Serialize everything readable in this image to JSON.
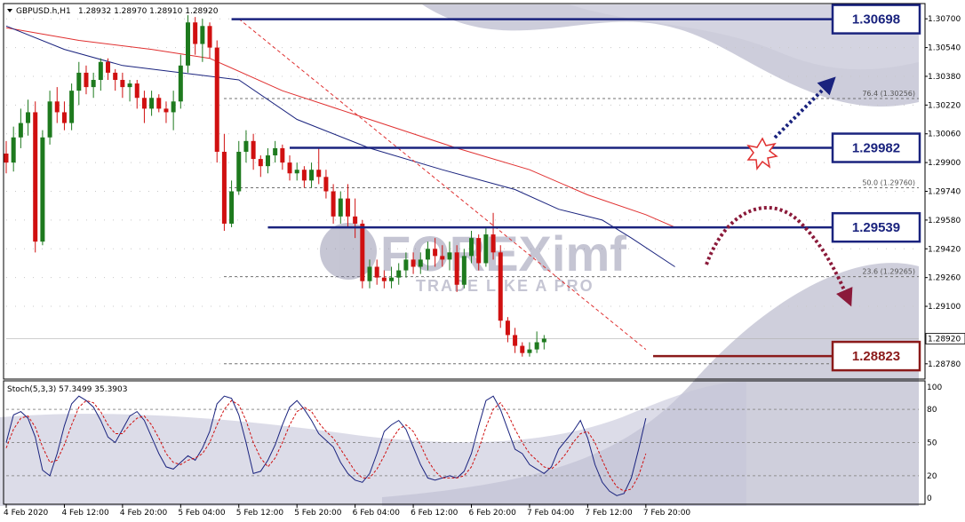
{
  "header": {
    "symbol": "GBPUSD.h,H1",
    "ohlc": "1.28932 1.28970 1.28910 1.28920"
  },
  "oscillator": {
    "label": "Stoch(5,3,3) 57.3499 35.3903"
  },
  "watermark": {
    "brand": "FOREXimf",
    "tagline": "TRADE LIKE A PRO"
  },
  "colors": {
    "level_box": "#1a237e",
    "support_box": "#8b1a1a",
    "red_ma": "#e03030",
    "blue_ma": "#1a237e",
    "bull_candle": "#1e7a1e",
    "bear_candle": "#d01010",
    "arrow_up": "#1a237e",
    "arrow_down": "#8b1a3a",
    "stoch_main": "#1a237e",
    "stoch_signal": "#d01010"
  },
  "chart_data": [
    {
      "type": "candlestick",
      "title": "GBPUSD.h,H1",
      "ylim": [
        1.287,
        1.3078
      ],
      "y_ticks": [
        "1.30700",
        "1.30540",
        "1.30380",
        "1.30220",
        "1.30060",
        "1.29900",
        "1.29740",
        "1.29580",
        "1.29420",
        "1.29260",
        "1.29100",
        "1.28780"
      ],
      "y_tick_values": [
        1.307,
        1.3054,
        1.3038,
        1.3022,
        1.3006,
        1.299,
        1.2974,
        1.2958,
        1.2942,
        1.2926,
        1.291,
        1.2878
      ],
      "current_price": "1.28920",
      "x_labels": [
        "4 Feb 2020",
        "4 Feb 12:00",
        "4 Feb 20:00",
        "5 Feb 04:00",
        "5 Feb 12:00",
        "5 Feb 20:00",
        "6 Feb 04:00",
        "6 Feb 12:00",
        "6 Feb 20:00",
        "7 Feb 04:00",
        "7 Feb 12:00",
        "7 Feb 20:00"
      ],
      "x_label_bars": [
        0,
        8,
        16,
        24,
        32,
        40,
        48,
        56,
        64,
        72,
        80,
        88
      ],
      "candles": [
        [
          1.2995,
          1.3002,
          1.2984,
          1.299
        ],
        [
          1.299,
          1.301,
          1.2985,
          1.3004
        ],
        [
          1.3004,
          1.302,
          1.2998,
          1.3012
        ],
        [
          1.3012,
          1.3025,
          1.3005,
          1.3018
        ],
        [
          1.3018,
          1.3024,
          1.294,
          1.2946
        ],
        [
          1.2946,
          1.3008,
          1.2944,
          1.3004
        ],
        [
          1.3004,
          1.303,
          1.3,
          1.3024
        ],
        [
          1.3024,
          1.3032,
          1.3012,
          1.3018
        ],
        [
          1.3018,
          1.3024,
          1.3008,
          1.3012
        ],
        [
          1.3012,
          1.3034,
          1.3008,
          1.303
        ],
        [
          1.303,
          1.3046,
          1.3022,
          1.304
        ],
        [
          1.304,
          1.3044,
          1.3028,
          1.3032
        ],
        [
          1.3032,
          1.304,
          1.3026,
          1.3036
        ],
        [
          1.3036,
          1.3048,
          1.303,
          1.3046
        ],
        [
          1.3046,
          1.3048,
          1.3036,
          1.304
        ],
        [
          1.304,
          1.3042,
          1.303,
          1.3036
        ],
        [
          1.3036,
          1.304,
          1.3026,
          1.3032
        ],
        [
          1.3032,
          1.3036,
          1.3024,
          1.3034
        ],
        [
          1.3034,
          1.3036,
          1.302,
          1.3026
        ],
        [
          1.3026,
          1.303,
          1.3012,
          1.302
        ],
        [
          1.302,
          1.303,
          1.3016,
          1.3026
        ],
        [
          1.3026,
          1.3028,
          1.3018,
          1.302
        ],
        [
          1.302,
          1.3024,
          1.3012,
          1.3018
        ],
        [
          1.3018,
          1.303,
          1.3008,
          1.3024
        ],
        [
          1.3024,
          1.305,
          1.302,
          1.3044
        ],
        [
          1.3044,
          1.3072,
          1.304,
          1.3068
        ],
        [
          1.3068,
          1.3071,
          1.305,
          1.3056
        ],
        [
          1.3056,
          1.307,
          1.3046,
          1.3066
        ],
        [
          1.3066,
          1.3068,
          1.3048,
          1.3054
        ],
        [
          1.3054,
          1.3058,
          1.299,
          1.2996
        ],
        [
          1.2996,
          1.3006,
          1.2952,
          1.2956
        ],
        [
          1.2956,
          1.298,
          1.2954,
          1.2974
        ],
        [
          1.2974,
          1.3002,
          1.2972,
          1.2996
        ],
        [
          1.2996,
          1.3008,
          1.299,
          1.3002
        ],
        [
          1.3002,
          1.3006,
          1.2986,
          1.2992
        ],
        [
          1.2992,
          1.2994,
          1.2982,
          1.2988
        ],
        [
          1.2988,
          1.2998,
          1.2984,
          1.2994
        ],
        [
          1.2994,
          1.3002,
          1.299,
          1.2998
        ],
        [
          1.2998,
          1.3,
          1.2986,
          1.299
        ],
        [
          1.299,
          1.2994,
          1.298,
          1.2984
        ],
        [
          1.2984,
          1.299,
          1.298,
          1.2986
        ],
        [
          1.2986,
          1.2988,
          1.2976,
          1.298
        ],
        [
          1.298,
          1.299,
          1.2976,
          1.2986
        ],
        [
          1.2986,
          1.2998,
          1.2978,
          1.2982
        ],
        [
          1.2982,
          1.2986,
          1.297,
          1.2974
        ],
        [
          1.2974,
          1.2978,
          1.2956,
          1.296
        ],
        [
          1.296,
          1.2974,
          1.2956,
          1.297
        ],
        [
          1.297,
          1.2978,
          1.2954,
          1.296
        ],
        [
          1.296,
          1.297,
          1.2948,
          1.2956
        ],
        [
          1.2956,
          1.2958,
          1.292,
          1.2924
        ],
        [
          1.2924,
          1.2936,
          1.292,
          1.2932
        ],
        [
          1.2932,
          1.2936,
          1.2922,
          1.2926
        ],
        [
          1.2926,
          1.293,
          1.292,
          1.2924
        ],
        [
          1.2924,
          1.2932,
          1.292,
          1.2926
        ],
        [
          1.2926,
          1.2934,
          1.2922,
          1.293
        ],
        [
          1.293,
          1.294,
          1.2926,
          1.2936
        ],
        [
          1.2936,
          1.294,
          1.2928,
          1.2932
        ],
        [
          1.2932,
          1.294,
          1.2928,
          1.2936
        ],
        [
          1.2936,
          1.2946,
          1.293,
          1.2942
        ],
        [
          1.2942,
          1.2948,
          1.2932,
          1.2938
        ],
        [
          1.2938,
          1.2944,
          1.2932,
          1.2936
        ],
        [
          1.2936,
          1.2946,
          1.293,
          1.294
        ],
        [
          1.294,
          1.2944,
          1.2918,
          1.2922
        ],
        [
          1.2922,
          1.2942,
          1.292,
          1.2938
        ],
        [
          1.2938,
          1.2952,
          1.2934,
          1.2948
        ],
        [
          1.2948,
          1.295,
          1.293,
          1.2934
        ],
        [
          1.2934,
          1.2954,
          1.2932,
          1.295
        ],
        [
          1.295,
          1.2962,
          1.2936,
          1.294
        ],
        [
          1.294,
          1.2944,
          1.2898,
          1.2902
        ],
        [
          1.2902,
          1.2904,
          1.289,
          1.2894
        ],
        [
          1.2894,
          1.2898,
          1.2884,
          1.2888
        ],
        [
          1.2888,
          1.289,
          1.2882,
          1.2884
        ],
        [
          1.2884,
          1.289,
          1.2882,
          1.2886
        ],
        [
          1.2886,
          1.2896,
          1.2884,
          1.289
        ],
        [
          1.289,
          1.2894,
          1.2886,
          1.2892
        ]
      ],
      "moving_averages": [
        {
          "color": "red_ma",
          "points": [
            [
              0,
              1.3065
            ],
            [
              10,
              1.3058
            ],
            [
              20,
              1.3053
            ],
            [
              28,
              1.3048
            ],
            [
              38,
              1.303
            ],
            [
              50,
              1.3014
            ],
            [
              62,
              1.2998
            ],
            [
              72,
              1.2986
            ],
            [
              80,
              1.2972
            ],
            [
              88,
              1.2961
            ],
            [
              92,
              1.2954
            ]
          ]
        },
        {
          "color": "blue_ma",
          "points": [
            [
              0,
              1.3066
            ],
            [
              8,
              1.3053
            ],
            [
              16,
              1.3044
            ],
            [
              24,
              1.304
            ],
            [
              32,
              1.3036
            ],
            [
              40,
              1.3014
            ],
            [
              50,
              1.2998
            ],
            [
              60,
              1.2986
            ],
            [
              70,
              1.2975
            ],
            [
              76,
              1.2964
            ],
            [
              82,
              1.2958
            ],
            [
              86,
              1.2948
            ],
            [
              92,
              1.2932
            ]
          ]
        }
      ],
      "levels": [
        {
          "label": "1.30698",
          "value": 1.30698,
          "kind": "resistance",
          "from_bar": 31
        },
        {
          "label": "1.29982",
          "value": 1.29982,
          "kind": "resistance",
          "from_bar": 39
        },
        {
          "label": "1.29539",
          "value": 1.29539,
          "kind": "resistance",
          "from_bar": 36
        },
        {
          "label": "1.28823",
          "value": 1.28823,
          "kind": "support",
          "from_bar": 89
        }
      ],
      "fibonacci": [
        {
          "label": "76.4 (1.30256)",
          "value": 1.30256
        },
        {
          "label": "50.0 (1.29760)",
          "value": 1.2976
        },
        {
          "label": "23.6 (1.29265)",
          "value": 1.29265
        }
      ],
      "trendline": {
        "from": [
          32,
          1.307
        ],
        "to": [
          88,
          1.2886
        ]
      }
    },
    {
      "type": "line",
      "title": "Stoch(5,3,3) 57.3499 35.3903",
      "ylim": [
        -5,
        105
      ],
      "y_ticks": [
        "100",
        "80",
        "50",
        "20",
        "0"
      ],
      "y_tick_values": [
        100,
        80,
        50,
        20,
        0
      ],
      "series": [
        {
          "name": "main",
          "color": "stoch_main",
          "values": [
            50,
            75,
            78,
            72,
            55,
            25,
            20,
            40,
            65,
            85,
            92,
            88,
            82,
            70,
            55,
            50,
            62,
            74,
            78,
            70,
            55,
            40,
            28,
            26,
            32,
            38,
            34,
            45,
            60,
            85,
            92,
            90,
            75,
            50,
            22,
            24,
            34,
            48,
            66,
            82,
            88,
            80,
            70,
            58,
            52,
            46,
            32,
            22,
            16,
            14,
            22,
            40,
            60,
            66,
            70,
            62,
            46,
            30,
            18,
            16,
            18,
            20,
            18,
            24,
            40,
            65,
            88,
            92,
            80,
            62,
            44,
            40,
            30,
            26,
            22,
            28,
            44,
            52,
            60,
            70,
            54,
            30,
            14,
            6,
            2,
            4,
            18,
            44,
            72
          ]
        },
        {
          "name": "signal",
          "color": "stoch_signal",
          "values": [
            45,
            62,
            72,
            74,
            64,
            46,
            32,
            34,
            48,
            66,
            82,
            88,
            86,
            78,
            66,
            58,
            58,
            66,
            72,
            74,
            66,
            54,
            40,
            32,
            30,
            34,
            36,
            40,
            50,
            66,
            80,
            88,
            84,
            70,
            50,
            36,
            28,
            36,
            50,
            66,
            78,
            82,
            78,
            68,
            60,
            54,
            44,
            34,
            24,
            18,
            18,
            26,
            38,
            52,
            62,
            66,
            60,
            48,
            34,
            24,
            18,
            18,
            18,
            20,
            28,
            44,
            64,
            80,
            86,
            76,
            62,
            50,
            40,
            34,
            28,
            26,
            32,
            40,
            50,
            58,
            60,
            50,
            34,
            20,
            10,
            6,
            8,
            20,
            40
          ]
        }
      ]
    }
  ]
}
